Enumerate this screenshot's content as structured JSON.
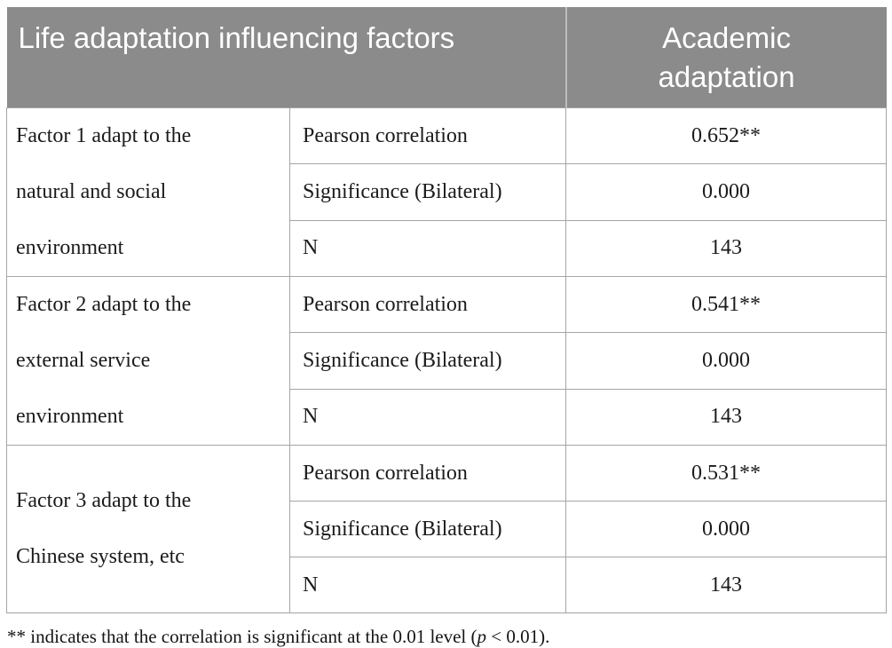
{
  "table": {
    "header": {
      "col1": "Life adaptation influencing factors",
      "col2": "Academic adaptation",
      "col2_lines": [
        "Academic",
        "adaptation"
      ]
    },
    "groups": [
      {
        "factor": "Factor 1 adapt to the natural and social environment",
        "factor_lines": [
          "Factor 1 adapt to the",
          "natural and social",
          "environment"
        ],
        "rows": [
          {
            "label": "Pearson correlation",
            "value": "0.652**"
          },
          {
            "label": "Significance (Bilateral)",
            "value": "0.000"
          },
          {
            "label": "N",
            "value": "143"
          }
        ]
      },
      {
        "factor": "Factor 2 adapt to the external service environment",
        "factor_lines": [
          "Factor 2 adapt to the",
          "external service",
          "environment"
        ],
        "rows": [
          {
            "label": "Pearson correlation",
            "value": "0.541**"
          },
          {
            "label": "Significance (Bilateral)",
            "value": "0.000"
          },
          {
            "label": "N",
            "value": "143"
          }
        ]
      },
      {
        "factor": "Factor 3 adapt to the Chinese system, etc",
        "factor_lines": [
          "Factor 3 adapt to the",
          "Chinese system, etc"
        ],
        "rows": [
          {
            "label": "Pearson correlation",
            "value": "0.531**"
          },
          {
            "label": "Significance (Bilateral)",
            "value": "0.000"
          },
          {
            "label": "N",
            "value": "143"
          }
        ]
      }
    ]
  },
  "footnote": {
    "prefix": "** indicates that the correlation is significant at the 0.01 level (",
    "italic": "p",
    "suffix": " < 0.01)."
  },
  "colors": {
    "header_bg": "#8b8b8b",
    "header_text": "#ffffff",
    "border": "#a5a5a5",
    "body_text": "#1b1b1b"
  }
}
